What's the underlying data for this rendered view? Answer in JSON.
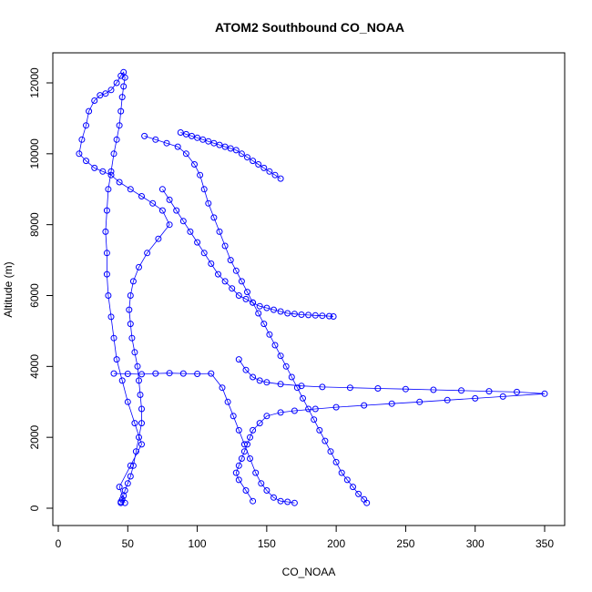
{
  "chart_data": {
    "type": "scatter",
    "title": "ATOM2 Southbound CO_NOAA",
    "xlabel": "CO_NOAA",
    "ylabel": "Altitude (m)",
    "xlim": [
      0,
      350
    ],
    "ylim": [
      0,
      12000
    ],
    "xticks": [
      0,
      50,
      100,
      150,
      200,
      250,
      300,
      350
    ],
    "yticks": [
      0,
      2000,
      4000,
      6000,
      8000,
      10000,
      12000
    ],
    "grid": false,
    "legend": "none",
    "marker": "open-circle",
    "connected": true,
    "color": "#0000ff",
    "series": [
      {
        "x": [
          48,
          44,
          52,
          60,
          55,
          50,
          46,
          42,
          40,
          38,
          36,
          35,
          35,
          34,
          35,
          36,
          38,
          40,
          42,
          44,
          45,
          46,
          47,
          48,
          47,
          45,
          42,
          38,
          34,
          30,
          26,
          22,
          20,
          17,
          15,
          20,
          26,
          32,
          38,
          44,
          52,
          60,
          68,
          75,
          80,
          72,
          64,
          58,
          54,
          52,
          51,
          52,
          53,
          55,
          57,
          58,
          59,
          60,
          60,
          58,
          56,
          54,
          52,
          50,
          48,
          47,
          46,
          45,
          45
        ],
        "y": [
          150,
          600,
          1200,
          1800,
          2400,
          3000,
          3600,
          4200,
          4800,
          5400,
          6000,
          6600,
          7200,
          7800,
          8400,
          9000,
          9500,
          10000,
          10400,
          10800,
          11200,
          11600,
          11900,
          12150,
          12300,
          12200,
          12000,
          11800,
          11700,
          11650,
          11500,
          11200,
          10800,
          10400,
          10000,
          9800,
          9600,
          9500,
          9400,
          9200,
          9000,
          8800,
          8600,
          8400,
          8000,
          7600,
          7200,
          6800,
          6400,
          6000,
          5600,
          5200,
          4800,
          4400,
          4000,
          3600,
          3200,
          2800,
          2400,
          2000,
          1600,
          1200,
          900,
          700,
          500,
          350,
          250,
          180,
          150
        ]
      },
      {
        "x": [
          62,
          70,
          78,
          86,
          92,
          98,
          102,
          105,
          108,
          112,
          116,
          120,
          124,
          128,
          132,
          136,
          140,
          144,
          148,
          152,
          156,
          160,
          164,
          168,
          172,
          176,
          180,
          184,
          188,
          192,
          196,
          200,
          204,
          208,
          212,
          216,
          220,
          222
        ],
        "y": [
          10500,
          10400,
          10300,
          10200,
          10000,
          9700,
          9400,
          9000,
          8600,
          8200,
          7800,
          7400,
          7000,
          6700,
          6400,
          6100,
          5800,
          5500,
          5200,
          4900,
          4600,
          4300,
          4000,
          3700,
          3400,
          3100,
          2800,
          2500,
          2200,
          1900,
          1600,
          1300,
          1000,
          800,
          600,
          400,
          250,
          150
        ]
      },
      {
        "x": [
          130,
          135,
          140,
          145,
          150,
          160,
          175,
          190,
          210,
          230,
          250,
          270,
          290,
          310,
          330,
          350,
          320,
          300,
          280,
          260,
          240,
          220,
          200,
          185,
          170,
          160,
          150,
          145,
          140,
          138,
          136,
          134,
          132,
          130,
          128,
          130,
          135,
          140
        ],
        "y": [
          4200,
          3900,
          3700,
          3600,
          3550,
          3500,
          3450,
          3420,
          3400,
          3380,
          3360,
          3340,
          3320,
          3300,
          3280,
          3230,
          3150,
          3100,
          3050,
          3000,
          2950,
          2900,
          2850,
          2800,
          2750,
          2700,
          2600,
          2400,
          2200,
          2000,
          1800,
          1600,
          1400,
          1200,
          1000,
          800,
          500,
          200
        ]
      },
      {
        "x": [
          75,
          80,
          85,
          90,
          95,
          100,
          105,
          110,
          115,
          120,
          125,
          130,
          135,
          140,
          145,
          150,
          155,
          160,
          165,
          170,
          175,
          180,
          185,
          190,
          195,
          198
        ],
        "y": [
          9000,
          8700,
          8400,
          8100,
          7800,
          7500,
          7200,
          6900,
          6600,
          6400,
          6200,
          6000,
          5900,
          5800,
          5700,
          5650,
          5600,
          5550,
          5500,
          5480,
          5460,
          5450,
          5440,
          5430,
          5420,
          5410
        ]
      },
      {
        "x": [
          40,
          50,
          60,
          70,
          80,
          90,
          100,
          110,
          118,
          122,
          126,
          130,
          134,
          138,
          142,
          146,
          150,
          155,
          160,
          165,
          170
        ],
        "y": [
          3800,
          3790,
          3780,
          3800,
          3810,
          3800,
          3790,
          3800,
          3400,
          3000,
          2600,
          2200,
          1800,
          1400,
          1000,
          700,
          500,
          300,
          200,
          180,
          150
        ]
      },
      {
        "x": [
          88,
          92,
          96,
          100,
          104,
          108,
          112,
          116,
          120,
          124,
          128,
          132,
          136,
          140,
          144,
          148,
          152,
          156,
          160
        ],
        "y": [
          10600,
          10550,
          10500,
          10450,
          10400,
          10350,
          10300,
          10250,
          10200,
          10150,
          10100,
          10000,
          9900,
          9800,
          9700,
          9600,
          9500,
          9400,
          9300
        ]
      }
    ]
  }
}
